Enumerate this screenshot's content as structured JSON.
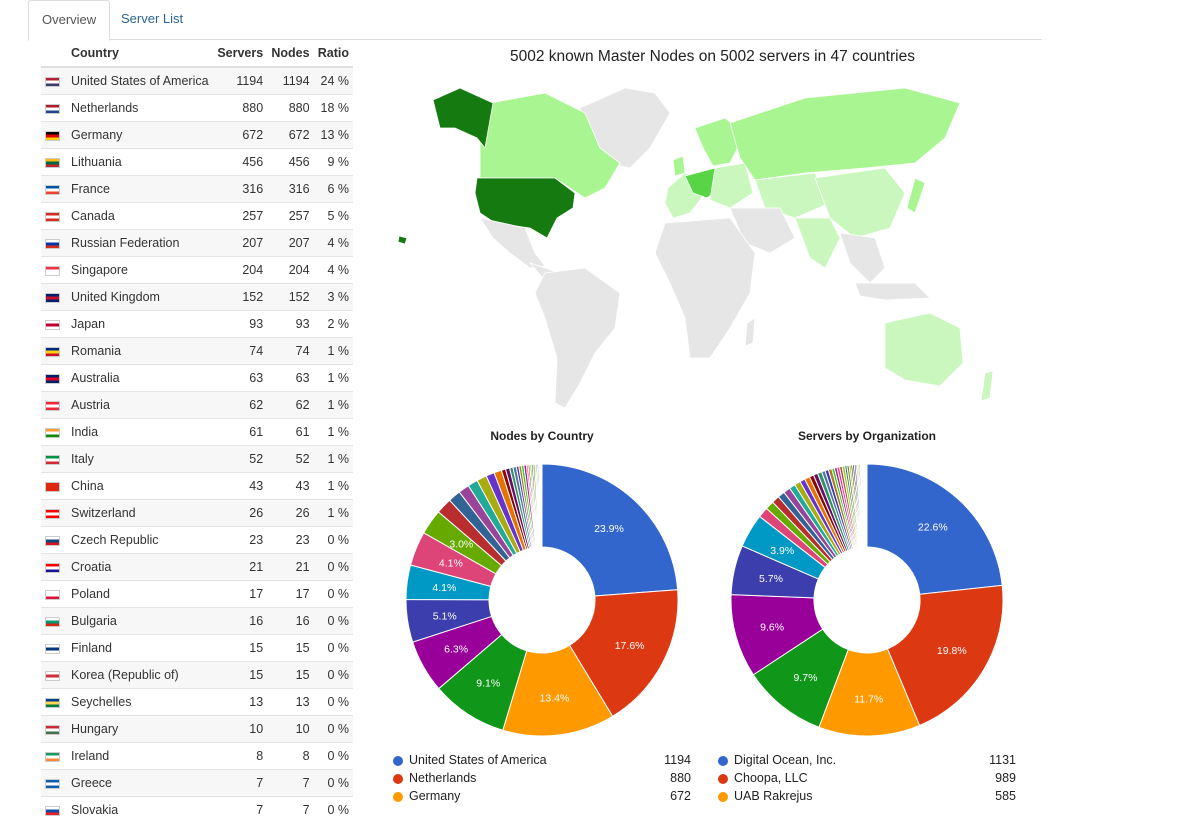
{
  "tabs": [
    {
      "label": "Overview",
      "active": true
    },
    {
      "label": "Server List",
      "active": false
    }
  ],
  "table": {
    "headers": {
      "country": "Country",
      "servers": "Servers",
      "nodes": "Nodes",
      "ratio": "Ratio"
    },
    "rows": [
      {
        "country": "United States of America",
        "servers": "1194",
        "nodes": "1194",
        "ratio": "24 %",
        "flag": [
          "#b22234",
          "#ffffff",
          "#3c3b6e"
        ]
      },
      {
        "country": "Netherlands",
        "servers": "880",
        "nodes": "880",
        "ratio": "18 %",
        "flag": [
          "#ae1c28",
          "#ffffff",
          "#21468b"
        ]
      },
      {
        "country": "Germany",
        "servers": "672",
        "nodes": "672",
        "ratio": "13 %",
        "flag": [
          "#000000",
          "#dd0000",
          "#ffce00"
        ]
      },
      {
        "country": "Lithuania",
        "servers": "456",
        "nodes": "456",
        "ratio": "9 %",
        "flag": [
          "#fdb913",
          "#006a44",
          "#c1272d"
        ]
      },
      {
        "country": "France",
        "servers": "316",
        "nodes": "316",
        "ratio": "6 %",
        "flag": [
          "#0055a4",
          "#ffffff",
          "#ef4135"
        ]
      },
      {
        "country": "Canada",
        "servers": "257",
        "nodes": "257",
        "ratio": "5 %",
        "flag": [
          "#d52b1e",
          "#ffffff",
          "#d52b1e"
        ]
      },
      {
        "country": "Russian Federation",
        "servers": "207",
        "nodes": "207",
        "ratio": "4 %",
        "flag": [
          "#ffffff",
          "#0039a6",
          "#d52b1e"
        ]
      },
      {
        "country": "Singapore",
        "servers": "204",
        "nodes": "204",
        "ratio": "4 %",
        "flag": [
          "#ef3340",
          "#ffffff",
          "#ffffff"
        ]
      },
      {
        "country": "United Kingdom",
        "servers": "152",
        "nodes": "152",
        "ratio": "3 %",
        "flag": [
          "#012169",
          "#c8102e",
          "#012169"
        ]
      },
      {
        "country": "Japan",
        "servers": "93",
        "nodes": "93",
        "ratio": "2 %",
        "flag": [
          "#ffffff",
          "#bc002d",
          "#ffffff"
        ]
      },
      {
        "country": "Romania",
        "servers": "74",
        "nodes": "74",
        "ratio": "1 %",
        "flag": [
          "#002b7f",
          "#fcd116",
          "#ce1126"
        ]
      },
      {
        "country": "Australia",
        "servers": "63",
        "nodes": "63",
        "ratio": "1 %",
        "flag": [
          "#012169",
          "#e4002b",
          "#012169"
        ]
      },
      {
        "country": "Austria",
        "servers": "62",
        "nodes": "62",
        "ratio": "1 %",
        "flag": [
          "#ed2939",
          "#ffffff",
          "#ed2939"
        ]
      },
      {
        "country": "India",
        "servers": "61",
        "nodes": "61",
        "ratio": "1 %",
        "flag": [
          "#ff9933",
          "#ffffff",
          "#138808"
        ]
      },
      {
        "country": "Italy",
        "servers": "52",
        "nodes": "52",
        "ratio": "1 %",
        "flag": [
          "#009246",
          "#ffffff",
          "#ce2b37"
        ]
      },
      {
        "country": "China",
        "servers": "43",
        "nodes": "43",
        "ratio": "1 %",
        "flag": [
          "#de2910",
          "#de2910",
          "#de2910"
        ]
      },
      {
        "country": "Switzerland",
        "servers": "26",
        "nodes": "26",
        "ratio": "1 %",
        "flag": [
          "#ff0000",
          "#ffffff",
          "#ff0000"
        ]
      },
      {
        "country": "Czech Republic",
        "servers": "23",
        "nodes": "23",
        "ratio": "0 %",
        "flag": [
          "#ffffff",
          "#11457e",
          "#d7141a"
        ]
      },
      {
        "country": "Croatia",
        "servers": "21",
        "nodes": "21",
        "ratio": "0 %",
        "flag": [
          "#ff0000",
          "#ffffff",
          "#171796"
        ]
      },
      {
        "country": "Poland",
        "servers": "17",
        "nodes": "17",
        "ratio": "0 %",
        "flag": [
          "#ffffff",
          "#ffffff",
          "#dc143c"
        ]
      },
      {
        "country": "Bulgaria",
        "servers": "16",
        "nodes": "16",
        "ratio": "0 %",
        "flag": [
          "#ffffff",
          "#00966e",
          "#d62612"
        ]
      },
      {
        "country": "Finland",
        "servers": "15",
        "nodes": "15",
        "ratio": "0 %",
        "flag": [
          "#ffffff",
          "#003580",
          "#ffffff"
        ]
      },
      {
        "country": "Korea (Republic of)",
        "servers": "15",
        "nodes": "15",
        "ratio": "0 %",
        "flag": [
          "#ffffff",
          "#cd2e3a",
          "#ffffff"
        ]
      },
      {
        "country": "Seychelles",
        "servers": "13",
        "nodes": "13",
        "ratio": "0 %",
        "flag": [
          "#003f87",
          "#fcd856",
          "#007a3d"
        ]
      },
      {
        "country": "Hungary",
        "servers": "10",
        "nodes": "10",
        "ratio": "0 %",
        "flag": [
          "#cd2a3e",
          "#ffffff",
          "#436f4d"
        ]
      },
      {
        "country": "Ireland",
        "servers": "8",
        "nodes": "8",
        "ratio": "0 %",
        "flag": [
          "#169b62",
          "#ffffff",
          "#ff883e"
        ]
      },
      {
        "country": "Greece",
        "servers": "7",
        "nodes": "7",
        "ratio": "0 %",
        "flag": [
          "#0d5eaf",
          "#ffffff",
          "#0d5eaf"
        ]
      },
      {
        "country": "Slovakia",
        "servers": "7",
        "nodes": "7",
        "ratio": "0 %",
        "flag": [
          "#ffffff",
          "#0b4ea2",
          "#ee1c25"
        ]
      }
    ]
  },
  "map": {
    "title": "5002 known Master Nodes on 5002 servers in 47 countries",
    "colors": {
      "none": "#e6e6e6",
      "low": "#c9f7bd",
      "mid": "#a8f592",
      "high": "#58d544",
      "top": "#157a0f"
    }
  },
  "chart_data": [
    {
      "type": "pie",
      "title": "Nodes by Country",
      "slices": [
        {
          "name": "United States of America",
          "value": 23.9,
          "label": "23.9%",
          "color": "#3366cc"
        },
        {
          "name": "Netherlands",
          "value": 17.6,
          "label": "17.6%",
          "color": "#dc3912"
        },
        {
          "name": "Germany",
          "value": 13.4,
          "label": "13.4%",
          "color": "#ff9900"
        },
        {
          "name": "",
          "value": 9.1,
          "label": "9.1%",
          "color": "#109618"
        },
        {
          "name": "",
          "value": 6.3,
          "label": "6.3%",
          "color": "#990099"
        },
        {
          "name": "",
          "value": 5.1,
          "label": "5.1%",
          "color": "#3b3eac"
        },
        {
          "name": "",
          "value": 4.1,
          "label": "4.1%",
          "color": "#0099c6"
        },
        {
          "name": "",
          "value": 4.1,
          "label": "4.1%",
          "color": "#dd4477"
        },
        {
          "name": "",
          "value": 3.0,
          "label": "3.0%",
          "color": "#66aa00"
        },
        {
          "name": "",
          "value": 1.9,
          "label": "",
          "color": "#b82e2e"
        },
        {
          "name": "",
          "value": 1.5,
          "label": "",
          "color": "#316395"
        },
        {
          "name": "",
          "value": 1.3,
          "label": "",
          "color": "#994499"
        },
        {
          "name": "",
          "value": 1.2,
          "label": "",
          "color": "#22aa99"
        },
        {
          "name": "",
          "value": 1.2,
          "label": "",
          "color": "#aaaa11"
        },
        {
          "name": "",
          "value": 1.0,
          "label": "",
          "color": "#6633cc"
        },
        {
          "name": "",
          "value": 0.9,
          "label": "",
          "color": "#e67300"
        },
        {
          "name": "",
          "value": 0.5,
          "label": "",
          "color": "#8b0707"
        },
        {
          "name": "",
          "value": 0.5,
          "label": "",
          "color": "#651067"
        },
        {
          "name": "",
          "value": 0.4,
          "label": "",
          "color": "#329262"
        },
        {
          "name": "",
          "value": 0.4,
          "label": "",
          "color": "#5574a6"
        },
        {
          "name": "",
          "value": 0.3,
          "label": "",
          "color": "#3b3eac"
        },
        {
          "name": "",
          "value": 0.3,
          "label": "",
          "color": "#b77322"
        },
        {
          "name": "",
          "value": 0.3,
          "label": "",
          "color": "#16d620"
        },
        {
          "name": "",
          "value": 0.3,
          "label": "",
          "color": "#b91383"
        },
        {
          "name": "",
          "value": 0.2,
          "label": "",
          "color": "#f4359e"
        },
        {
          "name": "",
          "value": 0.2,
          "label": "",
          "color": "#9c5935"
        },
        {
          "name": "",
          "value": 0.2,
          "label": "",
          "color": "#a9c413"
        },
        {
          "name": "",
          "value": 0.2,
          "label": "",
          "color": "#2a778d"
        },
        {
          "name": "",
          "value": 0.2,
          "label": "",
          "color": "#668d1c"
        },
        {
          "name": "",
          "value": 0.15,
          "label": "",
          "color": "#bea413"
        },
        {
          "name": "",
          "value": 0.15,
          "label": "",
          "color": "#0c5922"
        },
        {
          "name": "",
          "value": 0.15,
          "label": "",
          "color": "#743411"
        },
        {
          "name": "",
          "value": 0.1,
          "label": "",
          "color": "#3366cc"
        },
        {
          "name": "",
          "value": 0.1,
          "label": "",
          "color": "#dc3912"
        },
        {
          "name": "",
          "value": 0.1,
          "label": "",
          "color": "#ff9900"
        },
        {
          "name": "",
          "value": 0.1,
          "label": "",
          "color": "#109618"
        }
      ],
      "legend": [
        {
          "name": "United States of America",
          "value": "1194",
          "color": "#3366cc"
        },
        {
          "name": "Netherlands",
          "value": "880",
          "color": "#dc3912"
        },
        {
          "name": "Germany",
          "value": "672",
          "color": "#ff9900"
        }
      ]
    },
    {
      "type": "pie",
      "title": "Servers by Organization",
      "slices": [
        {
          "name": "Digital Ocean, Inc.",
          "value": 22.6,
          "label": "22.6%",
          "color": "#3366cc"
        },
        {
          "name": "Choopa, LLC",
          "value": 19.8,
          "label": "19.8%",
          "color": "#dc3912"
        },
        {
          "name": "UAB Rakrejus",
          "value": 11.7,
          "label": "11.7%",
          "color": "#ff9900"
        },
        {
          "name": "",
          "value": 9.7,
          "label": "9.7%",
          "color": "#109618"
        },
        {
          "name": "",
          "value": 9.6,
          "label": "9.6%",
          "color": "#990099"
        },
        {
          "name": "",
          "value": 5.7,
          "label": "5.7%",
          "color": "#3b3eac"
        },
        {
          "name": "",
          "value": 3.9,
          "label": "3.9%",
          "color": "#0099c6"
        },
        {
          "name": "",
          "value": 1.2,
          "label": "",
          "color": "#dd4477"
        },
        {
          "name": "",
          "value": 1.0,
          "label": "",
          "color": "#66aa00"
        },
        {
          "name": "",
          "value": 0.9,
          "label": "",
          "color": "#b82e2e"
        },
        {
          "name": "",
          "value": 0.8,
          "label": "",
          "color": "#316395"
        },
        {
          "name": "",
          "value": 0.8,
          "label": "",
          "color": "#994499"
        },
        {
          "name": "",
          "value": 0.7,
          "label": "",
          "color": "#22aa99"
        },
        {
          "name": "",
          "value": 0.7,
          "label": "",
          "color": "#aaaa11"
        },
        {
          "name": "",
          "value": 0.6,
          "label": "",
          "color": "#6633cc"
        },
        {
          "name": "",
          "value": 0.6,
          "label": "",
          "color": "#e67300"
        },
        {
          "name": "",
          "value": 0.5,
          "label": "",
          "color": "#8b0707"
        },
        {
          "name": "",
          "value": 0.5,
          "label": "",
          "color": "#651067"
        },
        {
          "name": "",
          "value": 0.5,
          "label": "",
          "color": "#329262"
        },
        {
          "name": "",
          "value": 0.4,
          "label": "",
          "color": "#5574a6"
        },
        {
          "name": "",
          "value": 0.4,
          "label": "",
          "color": "#3b3eac"
        },
        {
          "name": "",
          "value": 0.4,
          "label": "",
          "color": "#b77322"
        },
        {
          "name": "",
          "value": 0.3,
          "label": "",
          "color": "#16d620"
        },
        {
          "name": "",
          "value": 0.3,
          "label": "",
          "color": "#b91383"
        },
        {
          "name": "",
          "value": 0.3,
          "label": "",
          "color": "#f4359e"
        },
        {
          "name": "",
          "value": 0.3,
          "label": "",
          "color": "#9c5935"
        },
        {
          "name": "",
          "value": 0.3,
          "label": "",
          "color": "#a9c413"
        },
        {
          "name": "",
          "value": 0.25,
          "label": "",
          "color": "#2a778d"
        },
        {
          "name": "",
          "value": 0.25,
          "label": "",
          "color": "#668d1c"
        },
        {
          "name": "",
          "value": 0.2,
          "label": "",
          "color": "#bea413"
        },
        {
          "name": "",
          "value": 0.2,
          "label": "",
          "color": "#0c5922"
        },
        {
          "name": "",
          "value": 0.2,
          "label": "",
          "color": "#743411"
        },
        {
          "name": "",
          "value": 0.2,
          "label": "",
          "color": "#3366cc"
        },
        {
          "name": "",
          "value": 0.15,
          "label": "",
          "color": "#dc3912"
        },
        {
          "name": "",
          "value": 0.15,
          "label": "",
          "color": "#ff9900"
        },
        {
          "name": "",
          "value": 0.15,
          "label": "",
          "color": "#109618"
        },
        {
          "name": "",
          "value": 0.1,
          "label": "",
          "color": "#990099"
        },
        {
          "name": "",
          "value": 0.1,
          "label": "",
          "color": "#0099c6"
        },
        {
          "name": "",
          "value": 0.1,
          "label": "",
          "color": "#dd4477"
        },
        {
          "name": "",
          "value": 0.1,
          "label": "",
          "color": "#66aa00"
        },
        {
          "name": "",
          "value": 0.1,
          "label": "",
          "color": "#b82e2e"
        },
        {
          "name": "",
          "value": 0.1,
          "label": "",
          "color": "#316395"
        },
        {
          "name": "",
          "value": 0.1,
          "label": "",
          "color": "#994499"
        },
        {
          "name": "",
          "value": 0.1,
          "label": "",
          "color": "#22aa99"
        }
      ],
      "legend": [
        {
          "name": "Digital Ocean, Inc.",
          "value": "1131",
          "color": "#3366cc"
        },
        {
          "name": "Choopa, LLC",
          "value": "989",
          "color": "#dc3912"
        },
        {
          "name": "UAB Rakrejus",
          "value": "585",
          "color": "#ff9900"
        }
      ]
    }
  ]
}
